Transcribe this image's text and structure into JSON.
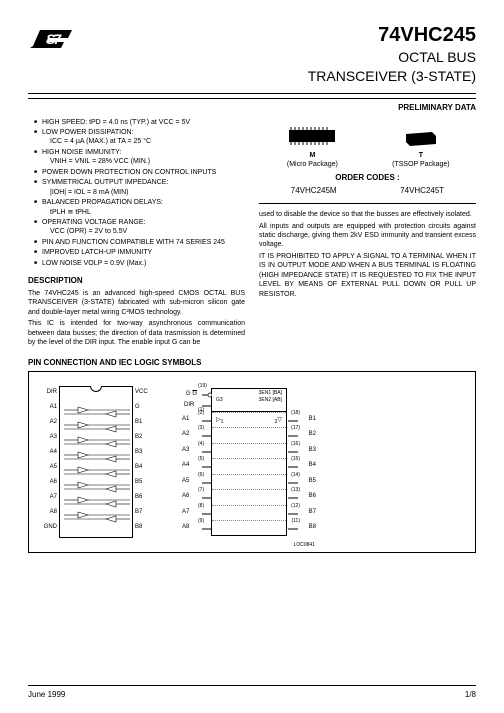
{
  "header": {
    "logo": "ST",
    "partNumber": "74VHC245",
    "title1": "OCTAL BUS",
    "title2": "TRANSCEIVER (3-STATE)",
    "preliminary": "PRELIMINARY DATA"
  },
  "features": [
    {
      "main": "HIGH SPEED: tPD = 4.0 ns (TYP.) at VCC = 5V"
    },
    {
      "main": "LOW POWER DISSIPATION:",
      "sub": "ICC = 4 µA (MAX.) at TA = 25 °C"
    },
    {
      "main": "HIGH NOISE IMMUNITY:",
      "sub": "VNIH = VNIL = 28% VCC (MIN.)"
    },
    {
      "main": "POWER DOWN PROTECTION ON CONTROL INPUTS"
    },
    {
      "main": "SYMMETRICAL OUTPUT IMPEDANCE:",
      "sub": "|IOH| = IOL = 8 mA (MIN)"
    },
    {
      "main": "BALANCED PROPAGATION DELAYS:",
      "sub": "tPLH ≅ tPHL"
    },
    {
      "main": "OPERATING VOLTAGE RANGE:",
      "sub": "VCC (OPR) = 2V to 5.5V"
    },
    {
      "main": "PIN AND FUNCTION COMPATIBLE WITH 74 SERIES 245"
    },
    {
      "main": "IMPROVED LATCH-UP IMMUNITY"
    },
    {
      "main": "LOW NOISE VOLP = 0.9V (Max.)"
    }
  ],
  "description": {
    "heading": "DESCRIPTION",
    "p1": "The 74VHC245 is an advanced high-speed CMOS OCTAL BUS TRANSCEIVER (3-STATE) fabricated with sub-micron silicon gate and double-layer metal wiring C²MOS technology.",
    "p2": "This IC is intended for two-way asynchronous communication between data busses; the direction of data trasmission is determined by the level of the DIR input. The enable input G can be"
  },
  "packages": {
    "m_label": "M",
    "m_desc": "(Micro Package)",
    "t_label": "T",
    "t_desc": "(TSSOP Package)",
    "order_title": "ORDER CODES :",
    "code_m": "74VHC245M",
    "code_t": "74VHC245T"
  },
  "rightText": {
    "p1": "used to disable the device so that the busses are effectively isolated.",
    "p2": "All inputs and outputs are equipped with protection circuits against static discharge, giving them 2kV ESD immunity and transient excess voltage.",
    "p3": "IT IS PROHIBITED TO APPLY A SIGNAL TO A TERMINAL WHEN IT IS IN OUTPUT MODE AND WHEN A BUS TERMINAL IS FLOATING (HIGH IMPEDANCE STATE) IT IS REQUESTED TO FIX THE INPUT LEVEL BY MEANS OF EXTERNAL PULL DOWN OR PULL UP RESISTOR."
  },
  "pinSection": {
    "title": "PIN CONNECTION AND IEC LOGIC SYMBOLS",
    "leftPins": [
      "DIR",
      "A1",
      "A2",
      "A3",
      "A4",
      "A5",
      "A6",
      "A7",
      "A8",
      "GND"
    ],
    "rightPins": [
      "VCC",
      "G",
      "B1",
      "B2",
      "B3",
      "B4",
      "B5",
      "B6",
      "B7",
      "B8"
    ],
    "iecTop": {
      "g": "G",
      "dir": "DIR",
      "en": "3EN1 [BA]",
      "en2": "3EN2 [AB]",
      "g3": "G3"
    },
    "iecA": [
      "A1",
      "A2",
      "A3",
      "A4",
      "A5",
      "A6",
      "A7",
      "A8"
    ],
    "iecB": [
      "B1",
      "B2",
      "B3",
      "B4",
      "B5",
      "B6",
      "B7",
      "B8"
    ],
    "iecPinsL": [
      "(2)",
      "(3)",
      "(4)",
      "(5)",
      "(6)",
      "(7)",
      "(8)",
      "(9)"
    ],
    "iecPinsR": [
      "(18)",
      "(17)",
      "(16)",
      "(15)",
      "(14)",
      "(13)",
      "(12)",
      "(11)"
    ],
    "iecTopPins": {
      "g": "(19)",
      "dir": "(1)"
    },
    "logref": "LOC0841"
  },
  "footer": {
    "date": "June 1999",
    "page": "1/8"
  }
}
